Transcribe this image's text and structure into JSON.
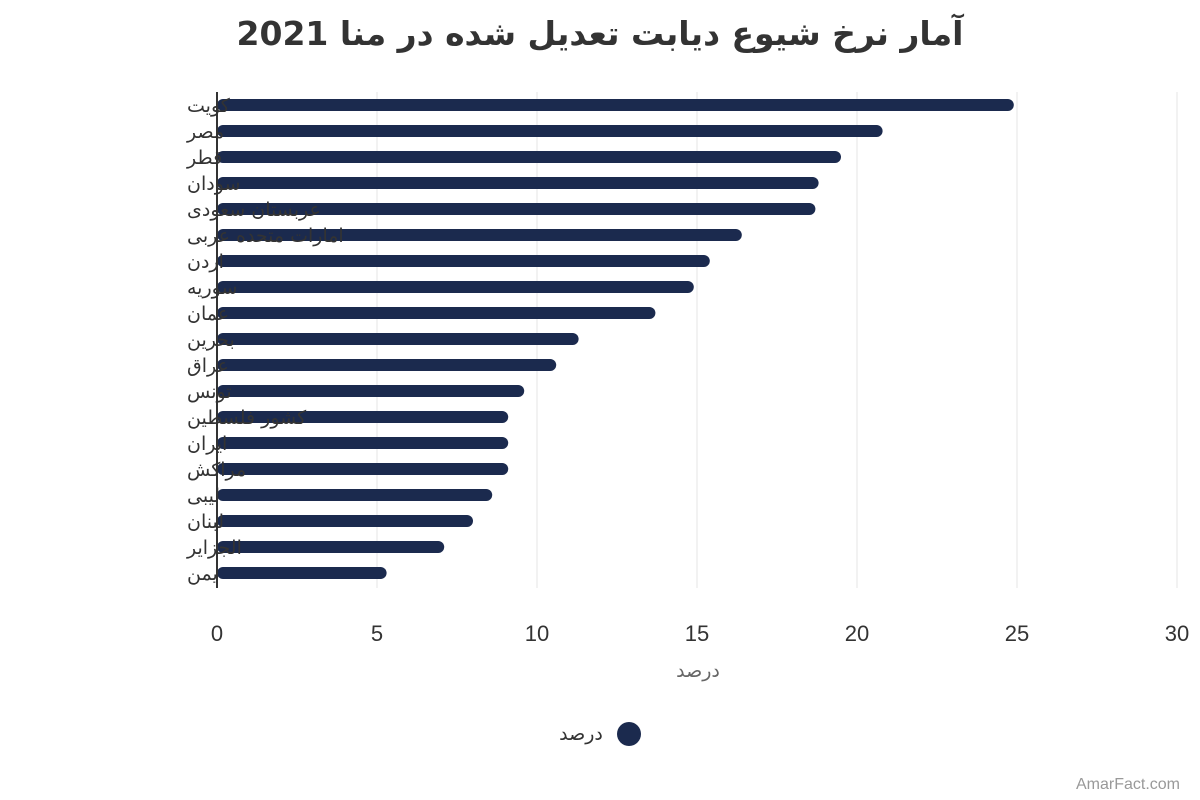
{
  "chart_data": {
    "type": "bar",
    "orientation": "horizontal",
    "title": "آمار نرخ شیوع دیابت تعدیل شده در منا 2021",
    "xlabel": "درصد",
    "ylabel": "",
    "xlim": [
      0,
      30
    ],
    "xticks": [
      0,
      5,
      10,
      15,
      20,
      25,
      30
    ],
    "grid": true,
    "legend_position": "bottom",
    "categories": [
      "کویت",
      "مصر",
      "قطر",
      "سودان",
      "عربستان سعودی",
      "امارات متحده عربی",
      "اردن",
      "سوریه",
      "عمان",
      "بحرین",
      "عراق",
      "تونس",
      "کشور فلسطین",
      "ایران",
      "مراکش",
      "لیبی",
      "لبنان",
      "الجزایر",
      "یمن"
    ],
    "series": [
      {
        "name": "درصد",
        "color": "#1b2a4e",
        "values": [
          24.9,
          20.8,
          19.5,
          18.8,
          18.7,
          16.4,
          15.4,
          14.9,
          13.7,
          11.3,
          10.6,
          9.6,
          9.1,
          9.1,
          9.1,
          8.6,
          8.0,
          7.1,
          5.3
        ]
      }
    ]
  },
  "colors": {
    "bar": "#1b2a4e",
    "grid": "#e6e6e6",
    "axis": "#333333",
    "text": "#333333"
  },
  "legend": {
    "label": "درصد"
  },
  "credit": "AmarFact.com"
}
